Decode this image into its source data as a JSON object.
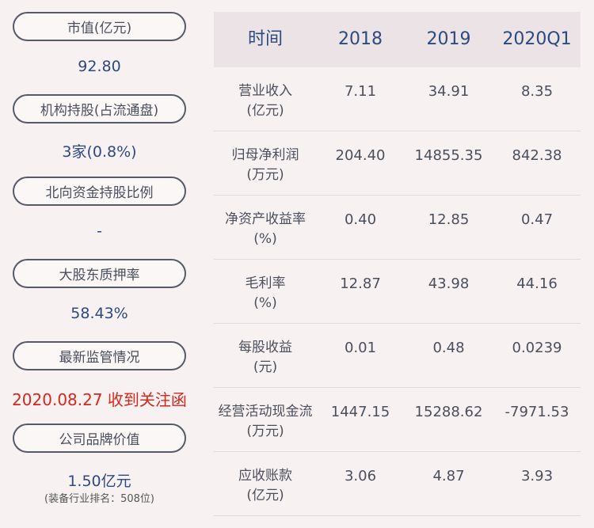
{
  "left": {
    "items": [
      {
        "label": "市值(亿元)",
        "value": "92.80"
      },
      {
        "label": "机构持股(占流通盘)",
        "value": "3家(0.8%)"
      },
      {
        "label": "北向资金持股比例",
        "value": "-"
      },
      {
        "label": "大股东质押率",
        "value": "58.43%"
      },
      {
        "label": "最新监管情况",
        "value": "2020.08.27 收到关注函"
      },
      {
        "label": "公司品牌价值",
        "value": "1.50亿元",
        "sub": "(装备行业排名：508位)"
      }
    ]
  },
  "table": {
    "headers": [
      "时间",
      "2018",
      "2019",
      "2020Q1"
    ],
    "rows": [
      {
        "label1": "营业收入",
        "label2": "(亿元)",
        "v": [
          "7.11",
          "34.91",
          "8.35"
        ]
      },
      {
        "label1": "归母净利润",
        "label2": "(万元)",
        "v": [
          "204.40",
          "14855.35",
          "842.38"
        ]
      },
      {
        "label1": "净资产收益率",
        "label2": "(%)",
        "v": [
          "0.40",
          "12.85",
          "0.47"
        ]
      },
      {
        "label1": "毛利率",
        "label2": "(%)",
        "v": [
          "12.87",
          "43.98",
          "44.16"
        ]
      },
      {
        "label1": "每股收益",
        "label2": "(元)",
        "v": [
          "0.01",
          "0.48",
          "0.0239"
        ]
      },
      {
        "label1": "经营活动现金流",
        "label2": "(万元)",
        "v": [
          "1447.15",
          "15288.62",
          "-7971.53"
        ]
      },
      {
        "label1": "应收账款",
        "label2": "(亿元)",
        "v": [
          "3.06",
          "4.87",
          "3.93"
        ]
      }
    ]
  }
}
